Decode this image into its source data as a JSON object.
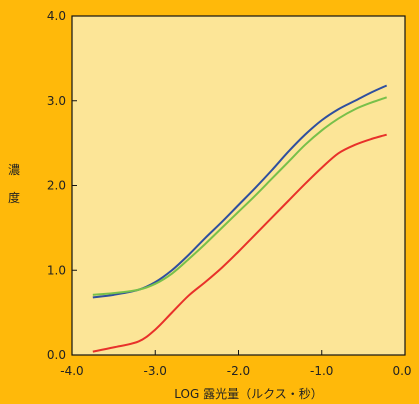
{
  "chart_data": {
    "type": "line",
    "xlabel": "LOG 露光量（ルクス・秒）",
    "ylabel": "濃度",
    "xlim": [
      -4.0,
      0.0
    ],
    "ylim": [
      0.0,
      4.0
    ],
    "x_ticks": [
      "-4.0",
      "-3.0",
      "-2.0",
      "-1.0",
      "0.0"
    ],
    "y_ticks": [
      "0.0",
      "1.0",
      "2.0",
      "3.0",
      "4.0"
    ],
    "grid": false,
    "plot_background": "#fce597",
    "series": [
      {
        "color": "#2f4f9f",
        "x": [
          -3.75,
          -3.5,
          -3.2,
          -3.0,
          -2.8,
          -2.6,
          -2.4,
          -2.2,
          -2.0,
          -1.8,
          -1.6,
          -1.4,
          -1.2,
          -1.0,
          -0.8,
          -0.6,
          -0.4,
          -0.22
        ],
        "y": [
          0.68,
          0.71,
          0.77,
          0.86,
          1.0,
          1.18,
          1.38,
          1.57,
          1.77,
          1.97,
          2.18,
          2.4,
          2.6,
          2.77,
          2.9,
          3.0,
          3.1,
          3.18
        ]
      },
      {
        "color": "#78c04a",
        "x": [
          -3.75,
          -3.5,
          -3.2,
          -3.0,
          -2.8,
          -2.6,
          -2.4,
          -2.2,
          -2.0,
          -1.8,
          -1.6,
          -1.4,
          -1.2,
          -1.0,
          -0.8,
          -0.6,
          -0.4,
          -0.22
        ],
        "y": [
          0.71,
          0.73,
          0.77,
          0.84,
          0.96,
          1.13,
          1.31,
          1.5,
          1.69,
          1.88,
          2.08,
          2.28,
          2.48,
          2.65,
          2.79,
          2.9,
          2.98,
          3.04
        ]
      },
      {
        "color": "#e8312a",
        "x": [
          -3.75,
          -3.5,
          -3.2,
          -3.0,
          -2.8,
          -2.6,
          -2.4,
          -2.2,
          -2.0,
          -1.8,
          -1.6,
          -1.4,
          -1.2,
          -1.0,
          -0.8,
          -0.6,
          -0.4,
          -0.22
        ],
        "y": [
          0.04,
          0.09,
          0.16,
          0.3,
          0.5,
          0.7,
          0.86,
          1.03,
          1.22,
          1.42,
          1.62,
          1.82,
          2.02,
          2.21,
          2.38,
          2.48,
          2.55,
          2.6
        ]
      }
    ]
  }
}
